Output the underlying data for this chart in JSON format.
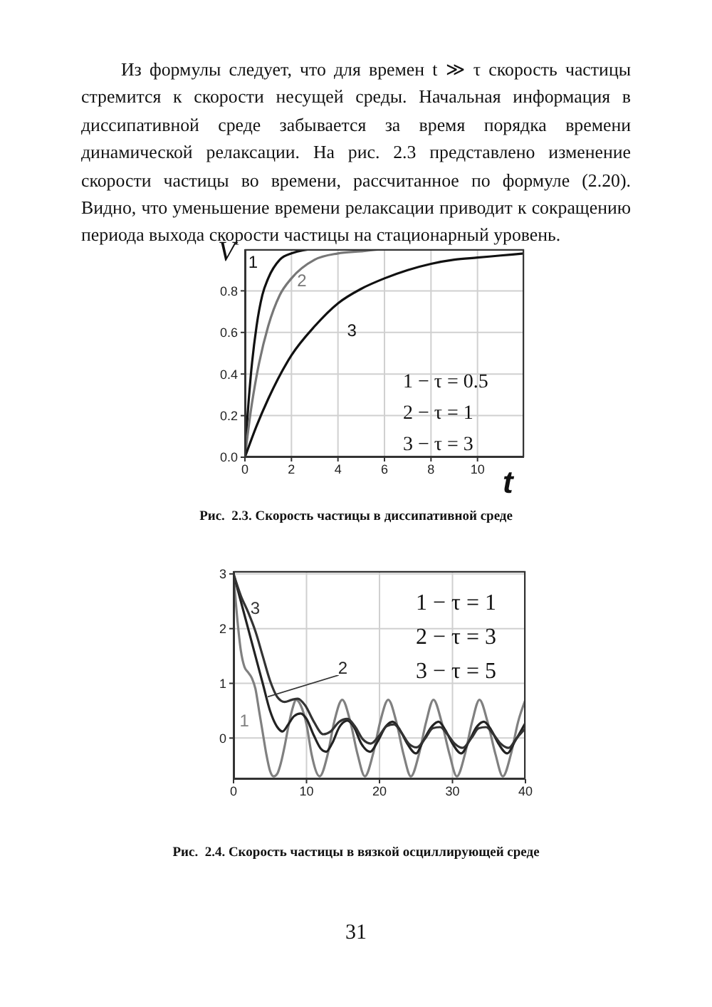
{
  "chart_data": [
    {
      "type": "line",
      "title": "Рис.  2.3. Скорость частицы в диссипативной среде",
      "xlabel": "t",
      "ylabel": "V",
      "xlim": [
        0,
        12
      ],
      "xticks": [
        0,
        2,
        4,
        6,
        8,
        10
      ],
      "ylim": [
        0,
        1
      ],
      "yticks": [
        {
          "value": 0,
          "label": "0.0"
        },
        0.2,
        0.4,
        0.6,
        0.8
      ],
      "grid": true,
      "line_style": "solid",
      "annotations": [
        "Из формулы следует, что для времен t ≫ τ скорость частицы стремится к скорости несущей среды. Начальная информация в диссипативной среде забывается за время порядка времени динамической релаксации. На рис. 2.3 представлено изменение скорости частицы во времени, рассчитанное по формуле (2.20). Видно, что уменьшение времени релаксации приводит к сокращению периода выхода скорости частицы на стационарный уровень.",
        "1 − τ = 0.5",
        "2 − τ = 1",
        "3 − τ = 3"
      ],
      "series": [
        {
          "name": "1",
          "color": "#111111",
          "x": [
            0,
            0.1,
            0.25,
            0.5,
            0.75,
            1,
            1.5,
            2,
            3,
            12
          ],
          "values": [
            0,
            0.18,
            0.39,
            0.63,
            0.78,
            0.86,
            0.95,
            0.98,
            1,
            1
          ]
        },
        {
          "name": "2",
          "color": "#777777",
          "x": [
            0,
            0.25,
            0.5,
            1,
            1.5,
            2,
            3,
            4,
            5,
            6,
            12
          ],
          "values": [
            0,
            0.22,
            0.39,
            0.63,
            0.78,
            0.86,
            0.95,
            0.98,
            0.99,
            1,
            1
          ]
        },
        {
          "name": "3",
          "color": "#111111",
          "x": [
            0,
            0.5,
            1,
            2,
            3,
            4,
            5,
            6,
            7,
            8,
            9,
            10,
            11,
            12
          ],
          "values": [
            0,
            0.15,
            0.28,
            0.49,
            0.63,
            0.74,
            0.81,
            0.86,
            0.9,
            0.93,
            0.95,
            0.96,
            0.97,
            0.98
          ]
        }
      ]
    },
    {
      "type": "line",
      "title": "Рис.  2.4. Скорость частицы в вязкой осциллирующей среде",
      "xlim": [
        0,
        40
      ],
      "xticks": [
        0,
        10,
        20,
        30,
        40
      ],
      "ylim": [
        -0.75,
        3.05
      ],
      "yticks": [
        0,
        1,
        2,
        3
      ],
      "grid": true,
      "line_style": "solid",
      "annotations": [
        "1 − τ = 1",
        "2 − τ = 3",
        "3 − τ = 5",
        "31"
      ],
      "series": [
        {
          "name": "1",
          "color": "#808080",
          "x": [
            0,
            0.5,
            1,
            1.5,
            2,
            2.5,
            3,
            3.5,
            4,
            4.5,
            5,
            5.5,
            6,
            6.5,
            7,
            7.5,
            8,
            8.6,
            9.2,
            10,
            10.7,
            11.8,
            12.9,
            13.8,
            14.9,
            16,
            17,
            18,
            19.1,
            20.1,
            21.2,
            22.3,
            23.3,
            24.3,
            25.4,
            26.4,
            27.4,
            28.5,
            29.6,
            30.6,
            31.7,
            32.7,
            33.7,
            34.8,
            35.9,
            36.9,
            38,
            39,
            40
          ],
          "values": [
            3,
            2.2,
            1.6,
            1.3,
            1.2,
            1.1,
            0.9,
            0.5,
            0.1,
            -0.3,
            -0.6,
            -0.7,
            -0.65,
            -0.45,
            -0.15,
            0.2,
            0.5,
            0.7,
            0.6,
            0.25,
            -0.3,
            -0.7,
            -0.3,
            0.3,
            0.7,
            0.3,
            -0.3,
            -0.7,
            -0.3,
            0.3,
            0.7,
            0.3,
            -0.3,
            -0.7,
            -0.3,
            0.3,
            0.7,
            0.3,
            -0.3,
            -0.7,
            -0.3,
            0.3,
            0.7,
            0.3,
            -0.3,
            -0.7,
            -0.3,
            0.3,
            0.7
          ]
        },
        {
          "name": "2",
          "color": "#222222",
          "x": [
            0,
            1,
            2,
            3,
            4,
            5,
            6,
            6.7,
            7.5,
            8.3,
            9.2,
            10,
            11,
            12,
            12.7,
            13.5,
            14.5,
            15.6,
            16.5,
            17.5,
            18.7,
            19.8,
            20.8,
            21.8,
            22.8,
            23.8,
            25,
            26,
            27.1,
            28.1,
            29,
            30,
            31.2,
            32.3,
            33.3,
            34.3,
            35.3,
            36.3,
            37.5,
            38.6,
            40
          ],
          "values": [
            3,
            2.5,
            2,
            1.5,
            1,
            0.5,
            0.2,
            0.12,
            0.25,
            0.4,
            0.45,
            0.35,
            0.05,
            -0.2,
            -0.25,
            -0.1,
            0.2,
            0.32,
            0.2,
            -0.1,
            -0.25,
            -0.05,
            0.2,
            0.3,
            0.15,
            -0.1,
            -0.28,
            -0.05,
            0.2,
            0.3,
            0.15,
            -0.1,
            -0.28,
            -0.05,
            0.2,
            0.3,
            0.15,
            -0.1,
            -0.28,
            -0.05,
            0.28
          ]
        },
        {
          "name": "3",
          "color": "#333333",
          "x": [
            0,
            1,
            2,
            3,
            4,
            5,
            6,
            7,
            8,
            8.8,
            9.8,
            11,
            12.3,
            13.3,
            14.5,
            15.6,
            16.7,
            17.7,
            18.8,
            20,
            21,
            22,
            23,
            24,
            25.1,
            26.3,
            27.3,
            28.3,
            29.3,
            30.3,
            31.4,
            32.6,
            33.6,
            34.6,
            35.6,
            36.6,
            37.7,
            38.8,
            40
          ],
          "values": [
            3,
            2.6,
            2.3,
            1.95,
            1.5,
            1.05,
            0.75,
            0.66,
            0.7,
            0.72,
            0.6,
            0.3,
            0.07,
            0.12,
            0.3,
            0.35,
            0.2,
            -0.02,
            -0.1,
            0.05,
            0.22,
            0.25,
            0.1,
            -0.1,
            -0.17,
            0,
            0.18,
            0.2,
            0.07,
            -0.1,
            -0.18,
            0,
            0.18,
            0.2,
            0.07,
            -0.1,
            -0.18,
            0,
            0.18
          ]
        }
      ]
    }
  ]
}
